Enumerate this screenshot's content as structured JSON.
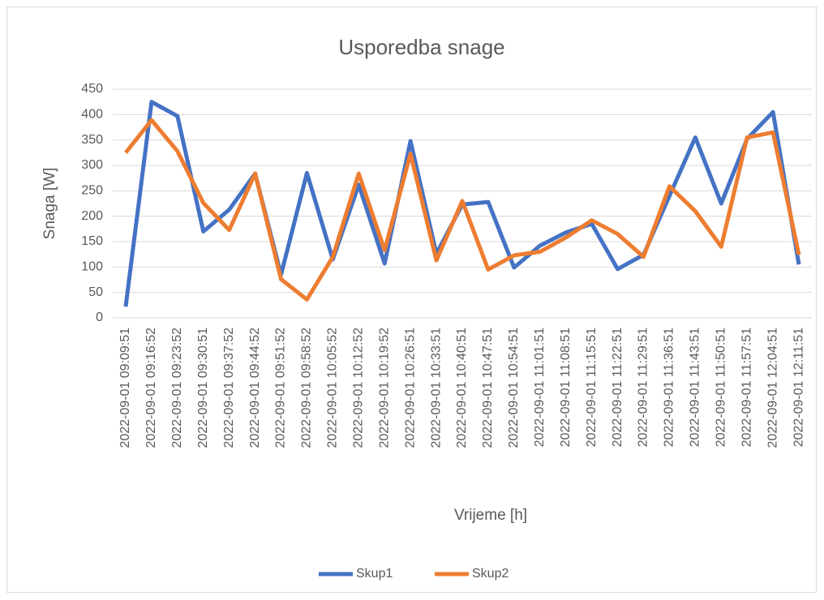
{
  "chart_data": {
    "type": "line",
    "title": "Usporedba snage",
    "x_label": "Vrijeme [h]",
    "y_label": "Snaga [W]",
    "categories": [
      "2022-09-01 09:09:51",
      "2022-09-01 09:16:52",
      "2022-09-01 09:23:52",
      "2022-09-01 09:30:51",
      "2022-09-01 09:37:52",
      "2022-09-01 09:44:52",
      "2022-09-01 09:51:52",
      "2022-09-01 09:58:52",
      "2022-09-01 10:05:52",
      "2022-09-01 10:12:52",
      "2022-09-01 10:19:52",
      "2022-09-01 10:26:51",
      "2022-09-01 10:33:51",
      "2022-09-01 10:40:51",
      "2022-09-01 10:47:51",
      "2022-09-01 10:54:51",
      "2022-09-01 11:01:51",
      "2022-09-01 11:08:51",
      "2022-09-01 11:15:51",
      "2022-09-01 11:22:51",
      "2022-09-01 11:29:51",
      "2022-09-01 11:36:51",
      "2022-09-01 11:43:51",
      "2022-09-01 11:50:51",
      "2022-09-01 11:57:51",
      "2022-09-01 12:04:51",
      "2022-09-01 12:11:51"
    ],
    "series": [
      {
        "name": "Skup1",
        "color": "#4472c4",
        "values": [
          22,
          425,
          397,
          170,
          213,
          284,
          85,
          285,
          115,
          262,
          107,
          348,
          126,
          223,
          228,
          99,
          142,
          168,
          185,
          96,
          124,
          240,
          355,
          225,
          352,
          405,
          105
        ]
      },
      {
        "name": "Skup2",
        "color": "#ed7d31",
        "values": [
          325,
          389,
          328,
          226,
          173,
          284,
          76,
          36,
          120,
          284,
          133,
          323,
          113,
          230,
          95,
          123,
          130,
          158,
          192,
          165,
          120,
          259,
          210,
          140,
          355,
          365,
          124
        ]
      }
    ],
    "ylim": [
      0,
      450
    ],
    "yticks": [
      0,
      50,
      100,
      150,
      200,
      250,
      300,
      350,
      400,
      450
    ],
    "grid": true,
    "legend": "bottom"
  }
}
